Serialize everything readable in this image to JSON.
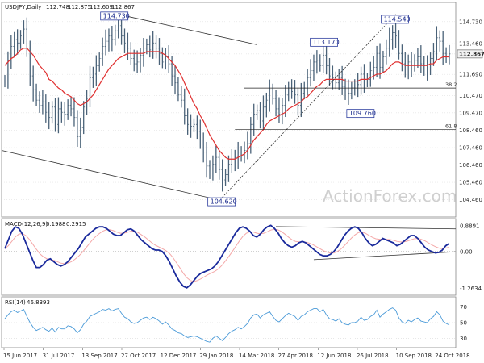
{
  "colors": {
    "price_bars": "#4a6278",
    "ema": "#e03030",
    "trendline": "#303030",
    "fib_line": "#202020",
    "callout_border": "#3040a0",
    "callout_text": "#1a2a8c",
    "macd_line": "#1a2a9c",
    "macd_signal": "#f4a8a8",
    "rsi_line": "#4a9ad8",
    "grid": "#cfcfcf",
    "last_price_bg": "#f2f2f2"
  },
  "chart_data": [
    {
      "type": "line",
      "panel": "price",
      "title": "USDJPY,Daily",
      "ohlc": {
        "open": "112.748",
        "high": "112.875",
        "low": "112.609",
        "close": "112.867"
      },
      "ylim": [
        103.6,
        115.7
      ],
      "y_ticks": [
        "114.730",
        "113.460",
        "112.867",
        "111.690",
        "110.470",
        "109.470",
        "108.460",
        "107.460",
        "106.460",
        "105.460",
        "104.460"
      ],
      "last_price": "112.867",
      "fib_levels": [
        {
          "label": "38.2",
          "value": 110.9
        },
        {
          "label": "61.8",
          "value": 108.5
        }
      ],
      "callouts": [
        {
          "label": "114.730",
          "x_index": 36
        },
        {
          "label": "104.620",
          "x_index": 69
        },
        {
          "label": "113.170",
          "x_index": 102
        },
        {
          "label": "109.760",
          "x_index": 110
        },
        {
          "label": "114.540",
          "x_index": 124
        }
      ],
      "close": [
        111.3,
        112.5,
        113.3,
        113.7,
        113.5,
        113.9,
        114.3,
        113.2,
        111.6,
        110.8,
        110.2,
        109.9,
        110.1,
        109.5,
        109.2,
        109.8,
        108.8,
        109.7,
        109.5,
        109.4,
        109.9,
        109.7,
        109.2,
        108.1,
        108.6,
        109.8,
        110.3,
        111.5,
        111.7,
        112.2,
        112.6,
        113.3,
        113.6,
        113.9,
        113.7,
        114.2,
        114.5,
        113.9,
        113.5,
        113.2,
        112.6,
        112.3,
        112.4,
        112.8,
        113.2,
        113.4,
        113.1,
        113.5,
        113.2,
        112.9,
        112.4,
        112.7,
        112.3,
        111.6,
        111.2,
        110.5,
        110.2,
        109.3,
        108.8,
        108.7,
        108.8,
        108.4,
        107.9,
        107.2,
        106.4,
        106.0,
        106.5,
        106.9,
        106.2,
        105.6,
        105.9,
        106.5,
        106.7,
        106.9,
        107.2,
        107.0,
        107.3,
        107.7,
        108.8,
        109.4,
        109.6,
        109.0,
        109.8,
        110.2,
        110.8,
        110.3,
        109.7,
        109.4,
        109.9,
        110.5,
        110.9,
        110.7,
        110.5,
        109.9,
        110.6,
        110.9,
        111.5,
        111.9,
        112.4,
        112.5,
        112.2,
        112.8,
        112.2,
        111.6,
        111.5,
        111.2,
        111.5,
        111.0,
        110.8,
        110.6,
        110.9,
        110.9,
        111.1,
        111.7,
        111.3,
        111.4,
        111.9,
        112.1,
        112.9,
        112.1,
        112.7,
        113.2,
        113.7,
        114.1,
        113.9,
        112.9,
        112.3,
        112.0,
        112.4,
        112.2,
        112.5,
        112.7,
        112.3,
        112.2,
        112.0,
        112.6,
        113.0,
        113.8,
        113.6,
        112.9,
        112.7,
        112.87
      ],
      "ema": [
        112.2,
        112.4,
        112.6,
        112.7,
        112.9,
        113.1,
        113.2,
        113.2,
        113.0,
        112.8,
        112.5,
        112.2,
        112.0,
        111.8,
        111.4,
        111.3,
        111.1,
        110.9,
        110.8,
        110.6,
        110.5,
        110.4,
        110.2,
        110.0,
        109.9,
        110.0,
        110.1,
        110.3,
        110.5,
        110.8,
        111.1,
        111.4,
        111.7,
        112.0,
        112.2,
        112.4,
        112.6,
        112.7,
        112.8,
        112.9,
        112.9,
        112.9,
        112.9,
        112.9,
        112.9,
        113.0,
        113.0,
        113.0,
        113.0,
        113.0,
        112.9,
        112.8,
        112.6,
        112.4,
        112.2,
        111.9,
        111.6,
        111.2,
        110.8,
        110.4,
        110.0,
        109.7,
        109.3,
        109.0,
        108.6,
        108.2,
        107.9,
        107.6,
        107.3,
        107.1,
        106.9,
        106.8,
        106.8,
        106.8,
        106.9,
        107.0,
        107.1,
        107.3,
        107.6,
        107.9,
        108.1,
        108.3,
        108.5,
        108.8,
        109.0,
        109.1,
        109.2,
        109.3,
        109.4,
        109.5,
        109.7,
        109.8,
        109.9,
        110.0,
        110.1,
        110.3,
        110.4,
        110.6,
        110.8,
        111.0,
        111.1,
        111.3,
        111.4,
        111.4,
        111.4,
        111.4,
        111.4,
        111.4,
        111.3,
        111.3,
        111.3,
        111.3,
        111.3,
        111.4,
        111.4,
        111.4,
        111.5,
        111.6,
        111.7,
        111.7,
        111.8,
        111.9,
        112.1,
        112.3,
        112.4,
        112.4,
        112.3,
        112.2,
        112.2,
        112.2,
        112.2,
        112.2,
        112.2,
        112.2,
        112.2,
        112.3,
        112.3,
        112.5,
        112.6,
        112.7,
        112.7,
        112.7
      ]
    },
    {
      "type": "line",
      "panel": "macd",
      "title": "MACD(12,26,9)",
      "header_values": [
        "0.1988",
        "0.2915"
      ],
      "ylim": [
        -1.45,
        1.05
      ],
      "y_ticks": [
        "0.8891",
        "0.00",
        "-1.2634"
      ],
      "zero_line": 0,
      "macd": [
        0.1,
        0.4,
        0.7,
        0.85,
        0.8,
        0.6,
        0.3,
        0.0,
        -0.3,
        -0.55,
        -0.55,
        -0.45,
        -0.3,
        -0.25,
        -0.35,
        -0.45,
        -0.5,
        -0.45,
        -0.35,
        -0.2,
        -0.05,
        0.1,
        0.3,
        0.5,
        0.6,
        0.7,
        0.8,
        0.85,
        0.85,
        0.8,
        0.7,
        0.6,
        0.55,
        0.55,
        0.65,
        0.75,
        0.78,
        0.7,
        0.55,
        0.4,
        0.3,
        0.2,
        0.1,
        0.05,
        0.05,
        0.0,
        -0.15,
        -0.35,
        -0.6,
        -0.85,
        -1.05,
        -1.2,
        -1.25,
        -1.15,
        -1.0,
        -0.85,
        -0.75,
        -0.7,
        -0.65,
        -0.6,
        -0.5,
        -0.35,
        -0.15,
        0.05,
        0.25,
        0.45,
        0.65,
        0.8,
        0.85,
        0.8,
        0.7,
        0.55,
        0.5,
        0.6,
        0.75,
        0.85,
        0.9,
        0.8,
        0.65,
        0.45,
        0.3,
        0.2,
        0.15,
        0.2,
        0.3,
        0.35,
        0.3,
        0.2,
        0.1,
        0.0,
        -0.1,
        -0.15,
        -0.15,
        -0.1,
        0.0,
        0.15,
        0.35,
        0.55,
        0.7,
        0.8,
        0.85,
        0.8,
        0.65,
        0.45,
        0.3,
        0.2,
        0.25,
        0.35,
        0.45,
        0.4,
        0.35,
        0.3,
        0.2,
        0.25,
        0.35,
        0.45,
        0.55,
        0.55,
        0.45,
        0.3,
        0.15,
        0.05,
        0.0,
        -0.05,
        -0.03,
        0.05,
        0.2,
        0.28
      ],
      "signal": [
        0.1,
        0.2,
        0.35,
        0.5,
        0.6,
        0.62,
        0.55,
        0.42,
        0.25,
        0.08,
        -0.08,
        -0.18,
        -0.25,
        -0.28,
        -0.3,
        -0.35,
        -0.4,
        -0.42,
        -0.4,
        -0.35,
        -0.27,
        -0.17,
        -0.05,
        0.1,
        0.25,
        0.4,
        0.52,
        0.62,
        0.7,
        0.75,
        0.75,
        0.72,
        0.67,
        0.63,
        0.63,
        0.66,
        0.7,
        0.7,
        0.66,
        0.58,
        0.5,
        0.4,
        0.3,
        0.22,
        0.16,
        0.1,
        0.03,
        -0.06,
        -0.2,
        -0.38,
        -0.56,
        -0.75,
        -0.9,
        -1.0,
        -1.03,
        -1.0,
        -0.94,
        -0.87,
        -0.8,
        -0.74,
        -0.68,
        -0.6,
        -0.48,
        -0.33,
        -0.17,
        0.0,
        0.18,
        0.36,
        0.52,
        0.63,
        0.68,
        0.67,
        0.63,
        0.61,
        0.63,
        0.68,
        0.74,
        0.77,
        0.75,
        0.69,
        0.6,
        0.5,
        0.41,
        0.35,
        0.33,
        0.33,
        0.32,
        0.29,
        0.24,
        0.17,
        0.1,
        0.03,
        -0.02,
        -0.05,
        -0.05,
        0.0,
        0.08,
        0.2,
        0.33,
        0.46,
        0.57,
        0.65,
        0.67,
        0.63,
        0.56,
        0.49,
        0.44,
        0.42,
        0.42,
        0.42,
        0.41,
        0.39,
        0.35,
        0.33,
        0.33,
        0.36,
        0.4,
        0.44,
        0.45,
        0.42,
        0.37,
        0.3,
        0.23,
        0.17,
        0.12,
        0.1,
        0.12,
        0.15
      ]
    },
    {
      "type": "line",
      "panel": "rsi",
      "title": "RSI(14)",
      "header_value": "46.8393",
      "ylim": [
        20,
        80
      ],
      "y_ticks": [
        "70",
        "50",
        "30"
      ],
      "rsi": [
        55,
        60,
        64,
        66,
        63,
        65,
        67,
        58,
        50,
        44,
        40,
        42,
        44,
        41,
        39,
        43,
        38,
        44,
        42,
        42,
        46,
        45,
        42,
        37,
        41,
        48,
        52,
        58,
        60,
        62,
        64,
        67,
        66,
        68,
        65,
        67,
        68,
        62,
        57,
        55,
        51,
        49,
        50,
        53,
        56,
        57,
        54,
        57,
        55,
        52,
        48,
        51,
        47,
        42,
        40,
        37,
        36,
        33,
        31,
        32,
        33,
        32,
        30,
        28,
        26,
        25,
        30,
        33,
        30,
        27,
        31,
        36,
        39,
        41,
        44,
        42,
        45,
        49,
        56,
        60,
        61,
        56,
        60,
        62,
        64,
        58,
        53,
        51,
        55,
        59,
        62,
        60,
        58,
        53,
        58,
        60,
        64,
        66,
        68,
        68,
        64,
        67,
        60,
        55,
        54,
        52,
        55,
        50,
        48,
        47,
        50,
        50,
        52,
        57,
        53,
        54,
        58,
        60,
        66,
        57,
        61,
        64,
        67,
        69,
        66,
        56,
        51,
        49,
        53,
        51,
        54,
        56,
        52,
        51,
        50,
        55,
        58,
        64,
        60,
        52,
        49,
        47
      ]
    },
    {
      "type": "line",
      "panel": "x-axis",
      "categories": [
        "15 Jun 2017",
        "31 Jul 2017",
        "13 Sep 2017",
        "27 Oct 2017",
        "12 Dec 2017",
        "29 Jan 2018",
        "14 Mar 2018",
        "27 Apr 2018",
        "12 Jun 2018",
        "26 Jul 2018",
        "10 Sep 2018",
        "24 Oct 2018"
      ]
    }
  ],
  "watermark": "ActionForex.com"
}
